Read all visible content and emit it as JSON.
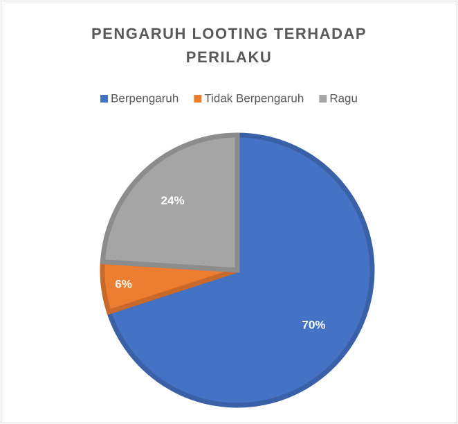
{
  "chart_data": {
    "type": "pie",
    "title": "PENGARUH LOOTING TERHADAP PERILAKU",
    "categories": [
      "Berpengaruh",
      "Tidak Berpengaruh",
      "Ragu"
    ],
    "values": [
      70,
      6,
      24
    ],
    "value_labels": [
      "70%",
      "6%",
      "24%"
    ],
    "colors": [
      "#4472c4",
      "#ed7d31",
      "#a5a5a5"
    ],
    "legend": "top"
  }
}
